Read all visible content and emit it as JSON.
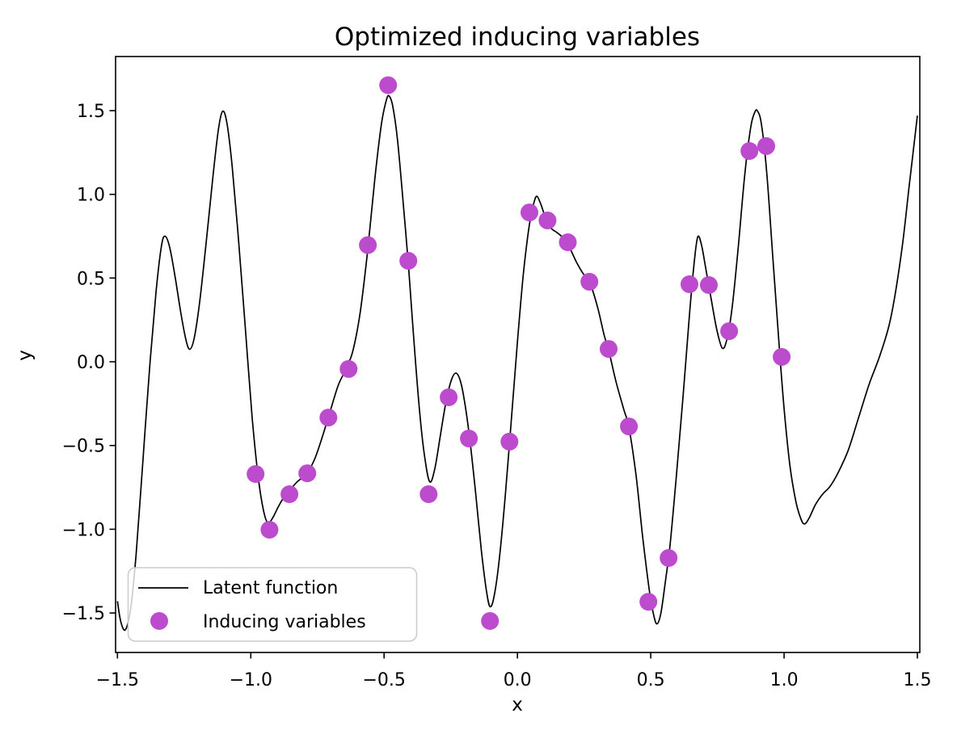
{
  "figure": {
    "background": "#ffffff"
  },
  "chart_data": {
    "type": "line+scatter",
    "title": "Optimized inducing variables",
    "xlabel": "x",
    "ylabel": "y",
    "xlim": [
      -1.507,
      1.509
    ],
    "ylim": [
      -1.736,
      1.823
    ],
    "grid": false,
    "frame_color": "#000000",
    "xticks": [
      {
        "v": -1.5,
        "label": "−1.5"
      },
      {
        "v": -1.0,
        "label": "−1.0"
      },
      {
        "v": -0.5,
        "label": "−0.5"
      },
      {
        "v": 0.0,
        "label": "0.0"
      },
      {
        "v": 0.5,
        "label": "0.5"
      },
      {
        "v": 1.0,
        "label": "1.0"
      },
      {
        "v": 1.5,
        "label": "1.5"
      }
    ],
    "yticks": [
      {
        "v": -1.5,
        "label": "−1.5"
      },
      {
        "v": -1.0,
        "label": "−1.0"
      },
      {
        "v": -0.5,
        "label": "−0.5"
      },
      {
        "v": 0.0,
        "label": "0.0"
      },
      {
        "v": 0.5,
        "label": "0.5"
      },
      {
        "v": 1.0,
        "label": "1.0"
      },
      {
        "v": 1.5,
        "label": "1.5"
      }
    ],
    "legend": {
      "position": "lower-left",
      "entries": [
        {
          "label": "Latent function",
          "marker": "line",
          "color": "#000000"
        },
        {
          "label": "Inducing variables",
          "marker": "dot",
          "color": "#BC4BCE"
        }
      ]
    },
    "series": [
      {
        "name": "Latent function",
        "type": "line",
        "color": "#000000",
        "points": [
          [
            -1.5,
            -1.43
          ],
          [
            -1.487,
            -1.555
          ],
          [
            -1.47,
            -1.6
          ],
          [
            -1.45,
            -1.47
          ],
          [
            -1.43,
            -1.15
          ],
          [
            -1.405,
            -0.6
          ],
          [
            -1.38,
            -0.05
          ],
          [
            -1.355,
            0.42
          ],
          [
            -1.335,
            0.69
          ],
          [
            -1.322,
            0.75
          ],
          [
            -1.305,
            0.69
          ],
          [
            -1.285,
            0.52
          ],
          [
            -1.262,
            0.29
          ],
          [
            -1.243,
            0.13
          ],
          [
            -1.229,
            0.075
          ],
          [
            -1.213,
            0.135
          ],
          [
            -1.193,
            0.34
          ],
          [
            -1.168,
            0.7
          ],
          [
            -1.143,
            1.09
          ],
          [
            -1.122,
            1.38
          ],
          [
            -1.106,
            1.495
          ],
          [
            -1.09,
            1.43
          ],
          [
            -1.07,
            1.17
          ],
          [
            -1.045,
            0.71
          ],
          [
            -1.02,
            0.19
          ],
          [
            -0.995,
            -0.33
          ],
          [
            -0.972,
            -0.69
          ],
          [
            -0.952,
            -0.89
          ],
          [
            -0.936,
            -0.962
          ],
          [
            -0.917,
            -0.93
          ],
          [
            -0.895,
            -0.86
          ],
          [
            -0.872,
            -0.8
          ],
          [
            -0.852,
            -0.765
          ],
          [
            -0.828,
            -0.72
          ],
          [
            -0.805,
            -0.69
          ],
          [
            -0.785,
            -0.655
          ],
          [
            -0.76,
            -0.58
          ],
          [
            -0.732,
            -0.45
          ],
          [
            -0.705,
            -0.31
          ],
          [
            -0.672,
            -0.14
          ],
          [
            -0.645,
            -0.05
          ],
          [
            -0.618,
            0.06
          ],
          [
            -0.59,
            0.29
          ],
          [
            -0.562,
            0.66
          ],
          [
            -0.535,
            1.09
          ],
          [
            -0.51,
            1.42
          ],
          [
            -0.492,
            1.56
          ],
          [
            -0.482,
            1.588
          ],
          [
            -0.468,
            1.53
          ],
          [
            -0.45,
            1.33
          ],
          [
            -0.428,
            0.94
          ],
          [
            -0.408,
            0.56
          ],
          [
            -0.388,
            0.12
          ],
          [
            -0.365,
            -0.33
          ],
          [
            -0.345,
            -0.6
          ],
          [
            -0.328,
            -0.718
          ],
          [
            -0.31,
            -0.64
          ],
          [
            -0.29,
            -0.45
          ],
          [
            -0.268,
            -0.24
          ],
          [
            -0.248,
            -0.11
          ],
          [
            -0.23,
            -0.068
          ],
          [
            -0.213,
            -0.12
          ],
          [
            -0.196,
            -0.26
          ],
          [
            -0.178,
            -0.47
          ],
          [
            -0.157,
            -0.78
          ],
          [
            -0.135,
            -1.13
          ],
          [
            -0.116,
            -1.37
          ],
          [
            -0.103,
            -1.462
          ],
          [
            -0.088,
            -1.405
          ],
          [
            -0.068,
            -1.18
          ],
          [
            -0.045,
            -0.79
          ],
          [
            -0.022,
            -0.33
          ],
          [
            0.0,
            0.12
          ],
          [
            0.022,
            0.52
          ],
          [
            0.045,
            0.82
          ],
          [
            0.062,
            0.95
          ],
          [
            0.073,
            0.988
          ],
          [
            0.088,
            0.94
          ],
          [
            0.105,
            0.862
          ],
          [
            0.125,
            0.8
          ],
          [
            0.148,
            0.772
          ],
          [
            0.168,
            0.745
          ],
          [
            0.19,
            0.7
          ],
          [
            0.22,
            0.6
          ],
          [
            0.245,
            0.53
          ],
          [
            0.27,
            0.478
          ],
          [
            0.3,
            0.33
          ],
          [
            0.325,
            0.16
          ],
          [
            0.342,
            0.07
          ],
          [
            0.37,
            -0.12
          ],
          [
            0.4,
            -0.29
          ],
          [
            0.418,
            -0.39
          ],
          [
            0.445,
            -0.68
          ],
          [
            0.47,
            -1.05
          ],
          [
            0.495,
            -1.37
          ],
          [
            0.512,
            -1.52
          ],
          [
            0.524,
            -1.565
          ],
          [
            0.538,
            -1.5
          ],
          [
            0.555,
            -1.31
          ],
          [
            0.572,
            -1.1
          ],
          [
            0.595,
            -0.7
          ],
          [
            0.62,
            -0.23
          ],
          [
            0.645,
            0.28
          ],
          [
            0.662,
            0.58
          ],
          [
            0.676,
            0.745
          ],
          [
            0.69,
            0.7
          ],
          [
            0.706,
            0.56
          ],
          [
            0.726,
            0.38
          ],
          [
            0.748,
            0.19
          ],
          [
            0.768,
            0.082
          ],
          [
            0.785,
            0.13
          ],
          [
            0.805,
            0.32
          ],
          [
            0.828,
            0.68
          ],
          [
            0.852,
            1.11
          ],
          [
            0.875,
            1.4
          ],
          [
            0.89,
            1.49
          ],
          [
            0.9,
            1.498
          ],
          [
            0.915,
            1.42
          ],
          [
            0.935,
            1.13
          ],
          [
            0.958,
            0.62
          ],
          [
            0.98,
            0.13
          ],
          [
            1.0,
            -0.28
          ],
          [
            1.022,
            -0.62
          ],
          [
            1.045,
            -0.84
          ],
          [
            1.065,
            -0.945
          ],
          [
            1.078,
            -0.968
          ],
          [
            1.095,
            -0.93
          ],
          [
            1.118,
            -0.852
          ],
          [
            1.145,
            -0.79
          ],
          [
            1.172,
            -0.745
          ],
          [
            1.2,
            -0.67
          ],
          [
            1.24,
            -0.53
          ],
          [
            1.28,
            -0.33
          ],
          [
            1.32,
            -0.13
          ],
          [
            1.36,
            0.04
          ],
          [
            1.4,
            0.26
          ],
          [
            1.44,
            0.65
          ],
          [
            1.47,
            1.06
          ],
          [
            1.5,
            1.47
          ]
        ]
      },
      {
        "name": "Inducing variables",
        "type": "scatter",
        "color": "#BC4BCE",
        "marker_radius_px": 11,
        "points": [
          [
            -0.982,
            -0.67
          ],
          [
            -0.93,
            -1.003
          ],
          [
            -0.855,
            -0.791
          ],
          [
            -0.788,
            -0.666
          ],
          [
            -0.709,
            -0.333
          ],
          [
            -0.633,
            -0.043
          ],
          [
            -0.561,
            0.697
          ],
          [
            -0.485,
            1.652
          ],
          [
            -0.409,
            0.603
          ],
          [
            -0.333,
            -0.791
          ],
          [
            -0.258,
            -0.212
          ],
          [
            -0.182,
            -0.458
          ],
          [
            -0.103,
            -1.548
          ],
          [
            -0.03,
            -0.477
          ],
          [
            0.045,
            0.892
          ],
          [
            0.113,
            0.844
          ],
          [
            0.189,
            0.714
          ],
          [
            0.27,
            0.478
          ],
          [
            0.342,
            0.077
          ],
          [
            0.418,
            -0.386
          ],
          [
            0.491,
            -1.433
          ],
          [
            0.567,
            -1.172
          ],
          [
            0.645,
            0.463
          ],
          [
            0.718,
            0.458
          ],
          [
            0.794,
            0.183
          ],
          [
            0.87,
            1.259
          ],
          [
            0.933,
            1.288
          ],
          [
            0.991,
            0.029
          ]
        ]
      }
    ]
  }
}
